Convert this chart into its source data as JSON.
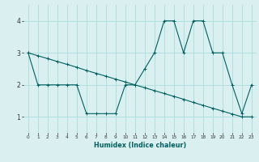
{
  "xlabel": "Humidex (Indice chaleur)",
  "bg_color": "#daf0f0",
  "grid_color": "#b0dede",
  "line_color": "#006060",
  "xlim": [
    -0.5,
    23.5
  ],
  "ylim": [
    0.5,
    4.5
  ],
  "yticks": [
    1,
    2,
    3,
    4
  ],
  "xticks": [
    0,
    1,
    2,
    3,
    4,
    5,
    6,
    7,
    8,
    9,
    10,
    11,
    12,
    13,
    14,
    15,
    16,
    17,
    18,
    19,
    20,
    21,
    22,
    23
  ],
  "series1_x": [
    0,
    1,
    2,
    3,
    4,
    5,
    6,
    7,
    8,
    9,
    10,
    11,
    12,
    13,
    14,
    15,
    16,
    17,
    18,
    19,
    20,
    21,
    22,
    23
  ],
  "series1_y": [
    3,
    2,
    2,
    2,
    2,
    2,
    1.1,
    1.1,
    1.1,
    1.1,
    2,
    2,
    2.5,
    3,
    4,
    4,
    3,
    4,
    4,
    3,
    3,
    2,
    1.1,
    2
  ],
  "series2_x": [
    0,
    1,
    2,
    3,
    4,
    5,
    6,
    7,
    8,
    9,
    10,
    11,
    12,
    13,
    14,
    15,
    16,
    17,
    18,
    19,
    20,
    21,
    22,
    23
  ],
  "series2_y": [
    3.0,
    2.91,
    2.82,
    2.73,
    2.64,
    2.55,
    2.45,
    2.36,
    2.27,
    2.18,
    2.09,
    2.0,
    1.91,
    1.82,
    1.73,
    1.64,
    1.55,
    1.45,
    1.36,
    1.27,
    1.18,
    1.09,
    1.0,
    1.0
  ]
}
